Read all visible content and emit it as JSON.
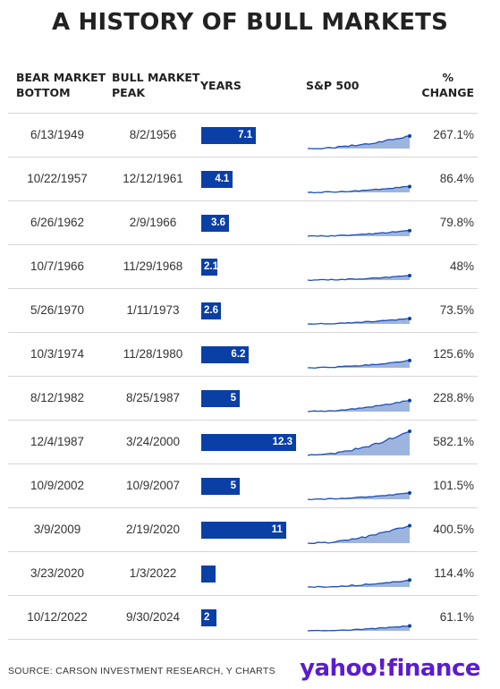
{
  "title": "A HISTORY OF BULL MARKETS",
  "headers": {
    "bottom_1": "BEAR MARKET",
    "bottom_2": "BOTTOM",
    "peak_1": "BULL MARKET",
    "peak_2": "PEAK",
    "years": "YEARS",
    "sp500": "S&P 500",
    "change_1": "%",
    "change_2": "CHANGE"
  },
  "chart_data": {
    "type": "table",
    "title": "A HISTORY OF BULL MARKETS",
    "columns": [
      "BEAR MARKET BOTTOM",
      "BULL MARKET PEAK",
      "YEARS",
      "S&P 500",
      "% CHANGE"
    ],
    "rows": [
      {
        "bottom": "6/13/1949",
        "peak": "8/2/1956",
        "years": 7.1,
        "years_label": "7.1",
        "change": "267.1%",
        "change_value": 267.1
      },
      {
        "bottom": "10/22/1957",
        "peak": "12/12/1961",
        "years": 4.1,
        "years_label": "4.1",
        "change": "86.4%",
        "change_value": 86.4
      },
      {
        "bottom": "6/26/1962",
        "peak": "2/9/1966",
        "years": 3.6,
        "years_label": "3.6",
        "change": "79.8%",
        "change_value": 79.8
      },
      {
        "bottom": "10/7/1966",
        "peak": "11/29/1968",
        "years": 2.1,
        "years_label": "2.1",
        "change": "48%",
        "change_value": 48
      },
      {
        "bottom": "5/26/1970",
        "peak": "1/11/1973",
        "years": 2.6,
        "years_label": "2.6",
        "change": "73.5%",
        "change_value": 73.5
      },
      {
        "bottom": "10/3/1974",
        "peak": "11/28/1980",
        "years": 6.2,
        "years_label": "6.2",
        "change": "125.6%",
        "change_value": 125.6
      },
      {
        "bottom": "8/12/1982",
        "peak": "8/25/1987",
        "years": 5,
        "years_label": "5",
        "change": "228.8%",
        "change_value": 228.8
      },
      {
        "bottom": "12/4/1987",
        "peak": "3/24/2000",
        "years": 12.3,
        "years_label": "12.3",
        "change": "582.1%",
        "change_value": 582.1
      },
      {
        "bottom": "10/9/2002",
        "peak": "10/9/2007",
        "years": 5,
        "years_label": "5",
        "change": "101.5%",
        "change_value": 101.5
      },
      {
        "bottom": "3/9/2009",
        "peak": "2/19/2020",
        "years": 11,
        "years_label": "11",
        "change": "400.5%",
        "change_value": 400.5
      },
      {
        "bottom": "3/23/2020",
        "peak": "1/3/2022",
        "years": 1.8,
        "years_label": "",
        "change": "114.4%",
        "change_value": 114.4
      },
      {
        "bottom": "10/12/2022",
        "peak": "9/30/2024",
        "years": 2,
        "years_label": "2",
        "change": "61.1%",
        "change_value": 61.1
      }
    ],
    "bar_color": "#0a3fa6",
    "spark_line_color": "#1f4fb5",
    "spark_fill_color": "#9db5de"
  },
  "source": "SOURCE: CARSON INVESTMENT RESEARCH, Y CHARTS",
  "logo": {
    "text_1": "yahoo",
    "bang": "!",
    "text_2": "finance",
    "color": "#5b1ccc"
  }
}
